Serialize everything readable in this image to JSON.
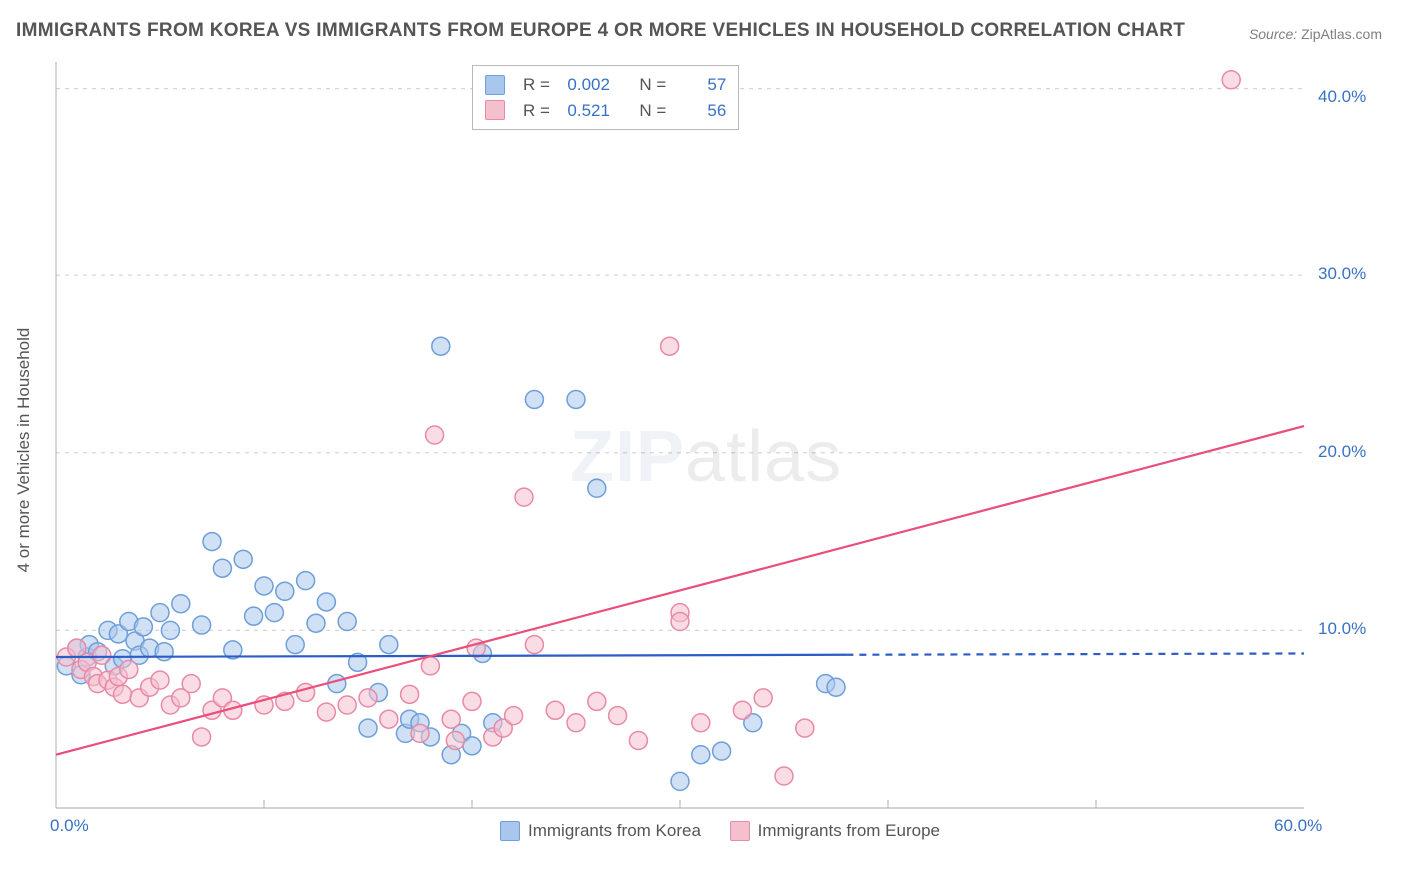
{
  "title": "IMMIGRANTS FROM KOREA VS IMMIGRANTS FROM EUROPE 4 OR MORE VEHICLES IN HOUSEHOLD CORRELATION CHART",
  "source": {
    "label": "Source:",
    "value": "ZipAtlas.com"
  },
  "y_axis_label": "4 or more Vehicles in Household",
  "watermark": {
    "zip": "ZIP",
    "atlas": "atlas"
  },
  "chart": {
    "type": "scatter",
    "background_color": "#ffffff",
    "grid_color": "#d6d6d6",
    "axis_color": "#b9b9b9",
    "tick_label_color": "#3972c4",
    "xlim": [
      0,
      60
    ],
    "ylim": [
      0,
      42
    ],
    "x_ticks": [
      0.0,
      60.0
    ],
    "x_tick_labels": [
      "0.0%",
      "60.0%"
    ],
    "y_ticks": [
      10.0,
      20.0,
      30.0,
      40.0
    ],
    "y_tick_labels": [
      "10.0%",
      "20.0%",
      "30.0%",
      "40.0%"
    ],
    "gridlines_y": [
      10.0,
      20.0,
      30.0,
      40.5
    ],
    "x_minor_ticks": [
      10,
      20,
      30,
      40,
      50
    ],
    "marker_radius": 9,
    "marker_stroke_width": 1.5,
    "series": [
      {
        "key": "korea",
        "label": "Immigrants from Korea",
        "fill": "#a9c6ec",
        "fill_opacity": 0.55,
        "stroke": "#6f9fd8",
        "points": [
          [
            0.5,
            8
          ],
          [
            1,
            9
          ],
          [
            1.2,
            7.5
          ],
          [
            1.5,
            8.5
          ],
          [
            1.6,
            9.2
          ],
          [
            2,
            8.8
          ],
          [
            2.5,
            10
          ],
          [
            2.8,
            8
          ],
          [
            3,
            9.8
          ],
          [
            3.2,
            8.4
          ],
          [
            3.5,
            10.5
          ],
          [
            3.8,
            9.4
          ],
          [
            4,
            8.6
          ],
          [
            4.2,
            10.2
          ],
          [
            4.5,
            9
          ],
          [
            5,
            11
          ],
          [
            5.2,
            8.8
          ],
          [
            5.5,
            10
          ],
          [
            6,
            11.5
          ],
          [
            7,
            10.3
          ],
          [
            7.5,
            15
          ],
          [
            8,
            13.5
          ],
          [
            8.5,
            8.9
          ],
          [
            9,
            14
          ],
          [
            9.5,
            10.8
          ],
          [
            10,
            12.5
          ],
          [
            10.5,
            11
          ],
          [
            11,
            12.2
          ],
          [
            11.5,
            9.2
          ],
          [
            12,
            12.8
          ],
          [
            12.5,
            10.4
          ],
          [
            13,
            11.6
          ],
          [
            13.5,
            7
          ],
          [
            14,
            10.5
          ],
          [
            14.5,
            8.2
          ],
          [
            15,
            4.5
          ],
          [
            15.5,
            6.5
          ],
          [
            16,
            9.2
          ],
          [
            16.8,
            4.2
          ],
          [
            17,
            5
          ],
          [
            17.5,
            4.8
          ],
          [
            18,
            4
          ],
          [
            18.5,
            26
          ],
          [
            19,
            3
          ],
          [
            19.5,
            4.2
          ],
          [
            20,
            3.5
          ],
          [
            20.5,
            8.7
          ],
          [
            21,
            4.8
          ],
          [
            23,
            23
          ],
          [
            25,
            23
          ],
          [
            26,
            18
          ],
          [
            30,
            1.5
          ],
          [
            31,
            3
          ],
          [
            32,
            3.2
          ],
          [
            33.5,
            4.8
          ],
          [
            37,
            7
          ],
          [
            37.5,
            6.8
          ]
        ],
        "trend": {
          "color": "#2c5cc5",
          "width": 2.2,
          "solid_from_x": 0,
          "solid_to_x": 38,
          "y_at_0": 8.5,
          "y_at_60": 8.7,
          "dash_from_x": 38
        }
      },
      {
        "key": "europe",
        "label": "Immigrants from Europe",
        "fill": "#f4c0ce",
        "fill_opacity": 0.55,
        "stroke": "#e88aa5",
        "points": [
          [
            0.5,
            8.5
          ],
          [
            1,
            9
          ],
          [
            1.2,
            7.8
          ],
          [
            1.5,
            8.2
          ],
          [
            1.8,
            7.4
          ],
          [
            2,
            7
          ],
          [
            2.2,
            8.6
          ],
          [
            2.5,
            7.2
          ],
          [
            2.8,
            6.8
          ],
          [
            3,
            7.4
          ],
          [
            3.2,
            6.4
          ],
          [
            3.5,
            7.8
          ],
          [
            4,
            6.2
          ],
          [
            4.5,
            6.8
          ],
          [
            5,
            7.2
          ],
          [
            5.5,
            5.8
          ],
          [
            6,
            6.2
          ],
          [
            6.5,
            7
          ],
          [
            7,
            4
          ],
          [
            7.5,
            5.5
          ],
          [
            8,
            6.2
          ],
          [
            8.5,
            5.5
          ],
          [
            10,
            5.8
          ],
          [
            11,
            6
          ],
          [
            12,
            6.5
          ],
          [
            13,
            5.4
          ],
          [
            14,
            5.8
          ],
          [
            15,
            6.2
          ],
          [
            16,
            5
          ],
          [
            17,
            6.4
          ],
          [
            17.5,
            4.2
          ],
          [
            18,
            8
          ],
          [
            18.2,
            21
          ],
          [
            19,
            5
          ],
          [
            19.2,
            3.8
          ],
          [
            20,
            6
          ],
          [
            20.2,
            9
          ],
          [
            21,
            4
          ],
          [
            21.5,
            4.5
          ],
          [
            22,
            5.2
          ],
          [
            22.5,
            17.5
          ],
          [
            23,
            9.2
          ],
          [
            24,
            5.5
          ],
          [
            25,
            4.8
          ],
          [
            26,
            6
          ],
          [
            27,
            5.2
          ],
          [
            28,
            3.8
          ],
          [
            29.5,
            26
          ],
          [
            30,
            11
          ],
          [
            31,
            4.8
          ],
          [
            33,
            5.5
          ],
          [
            34,
            6.2
          ],
          [
            35,
            1.8
          ],
          [
            36,
            4.5
          ],
          [
            56.5,
            41
          ],
          [
            30,
            10.5
          ]
        ],
        "trend": {
          "color": "#e94f7a",
          "width": 2.2,
          "solid_from_x": 0,
          "solid_to_x": 60,
          "y_at_0": 3.0,
          "y_at_60": 21.5
        }
      }
    ],
    "top_legend": {
      "rows": [
        {
          "series": "korea",
          "R_label": "R =",
          "R": "0.002",
          "N_label": "N =",
          "N": "57"
        },
        {
          "series": "europe",
          "R_label": "R =",
          "R": "0.521",
          "N_label": "N =",
          "N": "56"
        }
      ]
    }
  }
}
